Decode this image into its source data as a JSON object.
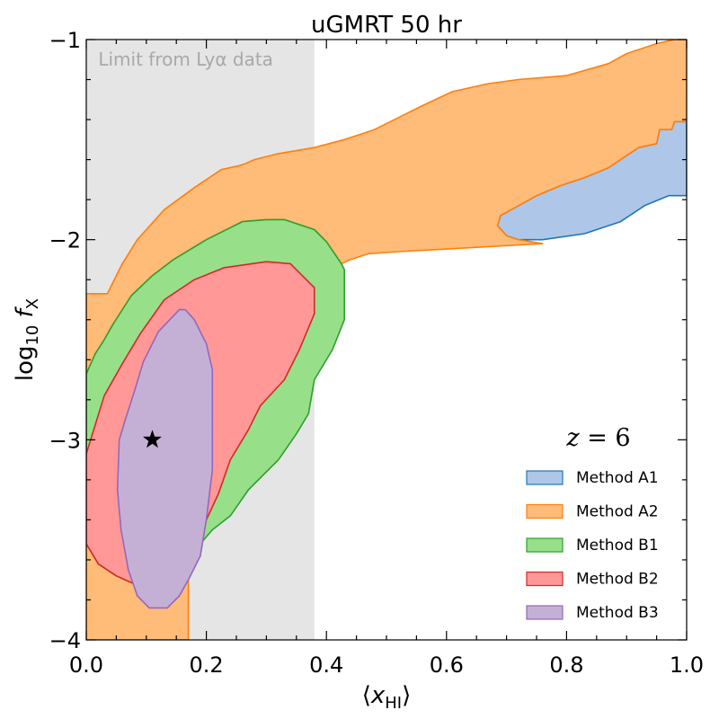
{
  "chart_data": {
    "type": "area",
    "title": "uGMRT 50 hr",
    "xlabel": "⟨x_HI⟩",
    "ylabel": "log10 f_X",
    "xlim": [
      0.0,
      1.0
    ],
    "ylim": [
      -4.0,
      -1.0
    ],
    "x_ticks": [
      0.0,
      0.2,
      0.4,
      0.6,
      0.8,
      1.0
    ],
    "x_tick_labels": [
      "0.0",
      "0.2",
      "0.4",
      "0.6",
      "0.8",
      "1.0"
    ],
    "y_ticks": [
      -4,
      -3,
      -2,
      -1
    ],
    "y_tick_labels": [
      "−4",
      "−3",
      "−2",
      "−1"
    ],
    "grid": false,
    "legend_position": "lower-right",
    "shaded_region": {
      "x": [
        0.0,
        0.38
      ],
      "label": "Limit from Lyα data",
      "color": "#e5e5e5"
    },
    "annotation": "z = 6",
    "marker": {
      "x": 0.11,
      "y": -3.0,
      "symbol": "star"
    },
    "series": [
      {
        "name": "Method A1",
        "fill": "#aec7e8",
        "edge": "#1f77b4",
        "points": [
          [
            0.69,
            -1.88
          ],
          [
            0.72,
            -1.83
          ],
          [
            0.75,
            -1.78
          ],
          [
            0.79,
            -1.73
          ],
          [
            0.83,
            -1.69
          ],
          [
            0.87,
            -1.64
          ],
          [
            0.9,
            -1.58
          ],
          [
            0.92,
            -1.54
          ],
          [
            0.95,
            -1.52
          ],
          [
            0.955,
            -1.45
          ],
          [
            0.975,
            -1.45
          ],
          [
            0.98,
            -1.41
          ],
          [
            1.0,
            -1.41
          ],
          [
            1.0,
            -1.78
          ],
          [
            0.97,
            -1.78
          ],
          [
            0.93,
            -1.83
          ],
          [
            0.89,
            -1.91
          ],
          [
            0.83,
            -1.97
          ],
          [
            0.76,
            -2.0
          ],
          [
            0.72,
            -2.0
          ],
          [
            0.7,
            -1.98
          ],
          [
            0.685,
            -1.93
          ]
        ]
      },
      {
        "name": "Method A2",
        "fill": "#ffbb78",
        "edge": "#ff7f0e",
        "points": [
          [
            0.0,
            -2.27
          ],
          [
            0.035,
            -2.27
          ],
          [
            0.06,
            -2.12
          ],
          [
            0.085,
            -2.0
          ],
          [
            0.13,
            -1.85
          ],
          [
            0.18,
            -1.74
          ],
          [
            0.225,
            -1.65
          ],
          [
            0.255,
            -1.63
          ],
          [
            0.265,
            -1.62
          ],
          [
            0.28,
            -1.6
          ],
          [
            0.32,
            -1.57
          ],
          [
            0.38,
            -1.54
          ],
          [
            0.43,
            -1.5
          ],
          [
            0.48,
            -1.45
          ],
          [
            0.52,
            -1.39
          ],
          [
            0.56,
            -1.33
          ],
          [
            0.61,
            -1.26
          ],
          [
            0.67,
            -1.22
          ],
          [
            0.72,
            -1.2
          ],
          [
            0.8,
            -1.18
          ],
          [
            0.87,
            -1.12
          ],
          [
            0.9,
            -1.07
          ],
          [
            0.95,
            -1.02
          ],
          [
            0.98,
            -1.0
          ],
          [
            1.0,
            -1.0
          ],
          [
            1.0,
            -1.41
          ],
          [
            0.98,
            -1.41
          ],
          [
            0.975,
            -1.45
          ],
          [
            0.955,
            -1.45
          ],
          [
            0.95,
            -1.52
          ],
          [
            0.92,
            -1.54
          ],
          [
            0.9,
            -1.58
          ],
          [
            0.87,
            -1.64
          ],
          [
            0.83,
            -1.69
          ],
          [
            0.79,
            -1.73
          ],
          [
            0.75,
            -1.78
          ],
          [
            0.72,
            -1.83
          ],
          [
            0.69,
            -1.88
          ],
          [
            0.685,
            -1.93
          ],
          [
            0.7,
            -1.98
          ],
          [
            0.72,
            -2.0
          ],
          [
            0.76,
            -2.02
          ],
          [
            0.64,
            -2.04
          ],
          [
            0.58,
            -2.05
          ],
          [
            0.52,
            -2.06
          ],
          [
            0.47,
            -2.07
          ],
          [
            0.44,
            -2.1
          ],
          [
            0.425,
            -2.12
          ],
          [
            0.4,
            -2.01
          ],
          [
            0.38,
            -1.95
          ],
          [
            0.33,
            -1.9
          ],
          [
            0.3,
            -1.9
          ],
          [
            0.26,
            -1.91
          ],
          [
            0.2,
            -2.0
          ],
          [
            0.145,
            -2.1
          ],
          [
            0.11,
            -2.18
          ],
          [
            0.075,
            -2.28
          ],
          [
            0.045,
            -2.42
          ],
          [
            0.03,
            -2.5
          ],
          [
            0.015,
            -2.57
          ],
          [
            0.0,
            -2.67
          ],
          [
            0.0,
            -4.0
          ],
          [
            0.17,
            -4.0
          ],
          [
            0.17,
            -3.7
          ],
          [
            0.17,
            -3.62
          ],
          [
            0.185,
            -3.6
          ],
          [
            0.19,
            -3.58
          ],
          [
            0.19,
            -3.52
          ],
          [
            0.17,
            -3.52
          ],
          [
            0.14,
            -3.55
          ],
          [
            0.1,
            -3.72
          ],
          [
            0.08,
            -3.72
          ],
          [
            0.05,
            -3.68
          ],
          [
            0.02,
            -3.62
          ],
          [
            0.0,
            -3.52
          ]
        ]
      },
      {
        "name": "Method B1",
        "fill": "#98df8a",
        "edge": "#2ca02c",
        "points": [
          [
            0.0,
            -2.67
          ],
          [
            0.015,
            -2.57
          ],
          [
            0.03,
            -2.5
          ],
          [
            0.045,
            -2.42
          ],
          [
            0.075,
            -2.28
          ],
          [
            0.11,
            -2.18
          ],
          [
            0.145,
            -2.1
          ],
          [
            0.2,
            -2.0
          ],
          [
            0.26,
            -1.91
          ],
          [
            0.3,
            -1.9
          ],
          [
            0.33,
            -1.9
          ],
          [
            0.38,
            -1.95
          ],
          [
            0.4,
            -2.01
          ],
          [
            0.425,
            -2.12
          ],
          [
            0.43,
            -2.15
          ],
          [
            0.43,
            -2.4
          ],
          [
            0.41,
            -2.55
          ],
          [
            0.38,
            -2.7
          ],
          [
            0.37,
            -2.87
          ],
          [
            0.35,
            -2.97
          ],
          [
            0.32,
            -3.1
          ],
          [
            0.27,
            -3.25
          ],
          [
            0.24,
            -3.38
          ],
          [
            0.21,
            -3.45
          ],
          [
            0.19,
            -3.52
          ],
          [
            0.17,
            -3.52
          ],
          [
            0.14,
            -3.55
          ],
          [
            0.1,
            -3.72
          ],
          [
            0.08,
            -3.72
          ],
          [
            0.05,
            -3.68
          ],
          [
            0.02,
            -3.62
          ],
          [
            0.0,
            -3.52
          ]
        ]
      },
      {
        "name": "Method B2",
        "fill": "#ff9896",
        "edge": "#d62728",
        "points": [
          [
            0.0,
            -3.07
          ],
          [
            0.03,
            -2.78
          ],
          [
            0.06,
            -2.62
          ],
          [
            0.09,
            -2.47
          ],
          [
            0.13,
            -2.3
          ],
          [
            0.18,
            -2.2
          ],
          [
            0.23,
            -2.14
          ],
          [
            0.3,
            -2.11
          ],
          [
            0.34,
            -2.12
          ],
          [
            0.38,
            -2.24
          ],
          [
            0.38,
            -2.37
          ],
          [
            0.355,
            -2.55
          ],
          [
            0.33,
            -2.7
          ],
          [
            0.29,
            -2.83
          ],
          [
            0.27,
            -2.95
          ],
          [
            0.24,
            -3.1
          ],
          [
            0.22,
            -3.27
          ],
          [
            0.2,
            -3.4
          ],
          [
            0.175,
            -3.55
          ],
          [
            0.155,
            -3.65
          ],
          [
            0.12,
            -3.7
          ],
          [
            0.08,
            -3.72
          ],
          [
            0.05,
            -3.68
          ],
          [
            0.02,
            -3.62
          ],
          [
            0.0,
            -3.52
          ]
        ]
      },
      {
        "name": "Method B3",
        "fill": "#c5b0d5",
        "edge": "#9467bd",
        "points": [
          [
            0.055,
            -3.0
          ],
          [
            0.065,
            -2.9
          ],
          [
            0.08,
            -2.76
          ],
          [
            0.095,
            -2.61
          ],
          [
            0.12,
            -2.46
          ],
          [
            0.155,
            -2.35
          ],
          [
            0.165,
            -2.35
          ],
          [
            0.18,
            -2.4
          ],
          [
            0.2,
            -2.52
          ],
          [
            0.21,
            -2.65
          ],
          [
            0.21,
            -2.82
          ],
          [
            0.21,
            -3.15
          ],
          [
            0.2,
            -3.4
          ],
          [
            0.19,
            -3.58
          ],
          [
            0.17,
            -3.7
          ],
          [
            0.155,
            -3.78
          ],
          [
            0.135,
            -3.84
          ],
          [
            0.105,
            -3.84
          ],
          [
            0.085,
            -3.78
          ],
          [
            0.07,
            -3.65
          ],
          [
            0.058,
            -3.45
          ],
          [
            0.052,
            -3.25
          ]
        ]
      }
    ]
  }
}
